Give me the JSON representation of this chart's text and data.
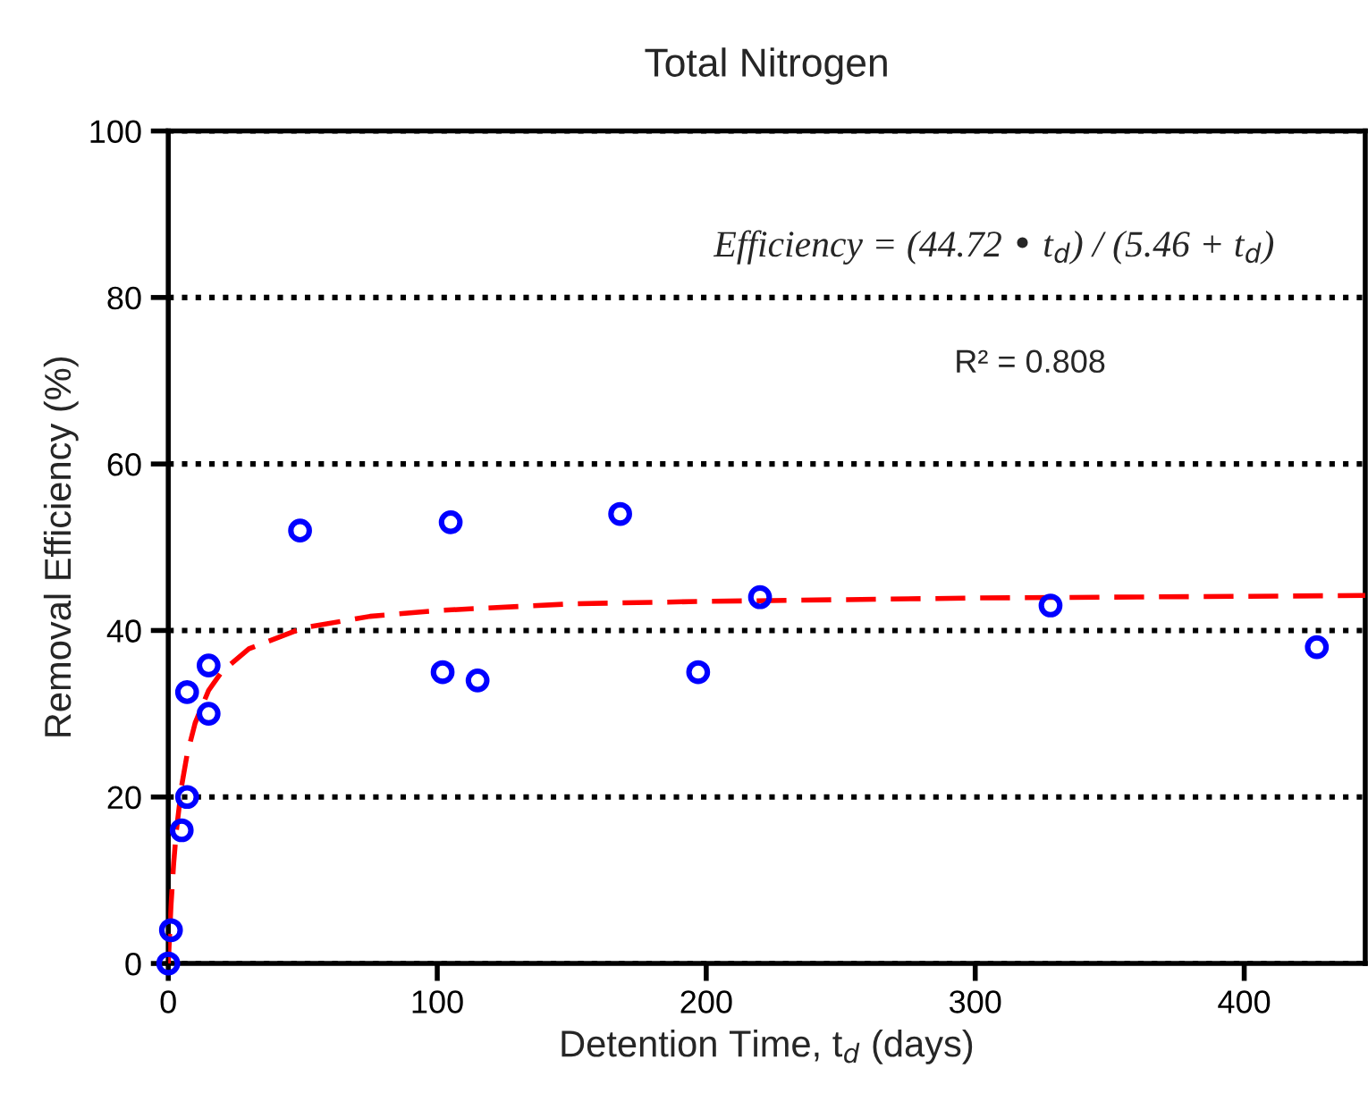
{
  "chart_data": {
    "type": "scatter",
    "title": "Total Nitrogen",
    "xlabel": "Detention Time, t$_{d}$ (days)",
    "ylabel": "Removal Efficiency (%)",
    "xlim": [
      0,
      445
    ],
    "xticks": [
      0,
      100,
      200,
      300,
      400
    ],
    "ylim": [
      0,
      100
    ],
    "yticks": [
      0,
      20,
      40,
      60,
      80,
      100
    ],
    "grid": "y",
    "legend": false,
    "annotations": [
      "Efficiency = (44.72 • t$_{d}$) / (5.46 + t$_{d}$)",
      "R² = 0.808"
    ],
    "series": [
      {
        "color": "#0000ff",
        "marker": "circle",
        "x": [
          0,
          1,
          5,
          7,
          7,
          15,
          15,
          49,
          102,
          105,
          115,
          168,
          197,
          220,
          328,
          427
        ],
        "values": [
          0,
          4,
          16,
          20,
          32.6,
          30,
          35.8,
          52,
          35,
          53,
          34,
          54,
          35,
          44,
          43,
          38
        ]
      },
      {
        "type": "line",
        "color": "#ff0000",
        "line_style": "dashed",
        "x": [
          0,
          1,
          2,
          3,
          5,
          7,
          10,
          15,
          20,
          30,
          50,
          75,
          100,
          150,
          200,
          300,
          445
        ],
        "values": [
          0,
          6.9,
          12.0,
          15.9,
          21.4,
          25.1,
          28.9,
          32.8,
          35.1,
          37.8,
          40.3,
          41.7,
          42.4,
          43.2,
          43.5,
          43.9,
          44.2
        ]
      }
    ]
  }
}
